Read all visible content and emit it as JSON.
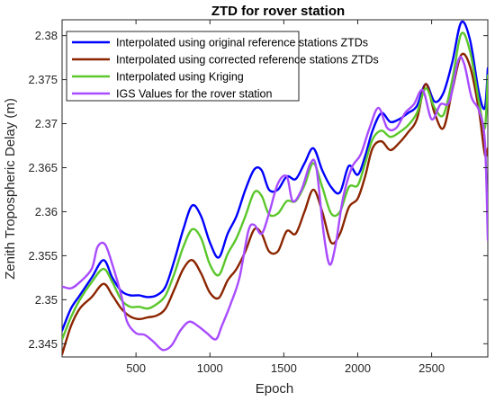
{
  "chart_data": {
    "type": "line",
    "title": "ZTD for rover station",
    "xlabel": "Epoch",
    "ylabel": "Zenith Tropospheric Delay (m)",
    "xlim": [
      0,
      2880
    ],
    "ylim": [
      2.3435,
      2.3818
    ],
    "xticks": [
      500,
      1000,
      1500,
      2000,
      2500
    ],
    "yticks": [
      2.345,
      2.35,
      2.355,
      2.36,
      2.365,
      2.37,
      2.375,
      2.38
    ],
    "ytick_labels": [
      "2.345",
      "2.35",
      "2.355",
      "2.36",
      "2.365",
      "2.37",
      "2.375",
      "2.38"
    ],
    "legend_position": "top-left",
    "grid": false,
    "series": [
      {
        "name": "Interpolated using original reference stations ZTDs",
        "color": "#0000FF",
        "points": [
          [
            0,
            2.3465
          ],
          [
            60,
            2.349
          ],
          [
            120,
            2.3505
          ],
          [
            200,
            2.3525
          ],
          [
            280,
            2.3545
          ],
          [
            340,
            2.3525
          ],
          [
            400,
            2.351
          ],
          [
            460,
            2.3505
          ],
          [
            520,
            2.3505
          ],
          [
            580,
            2.3503
          ],
          [
            640,
            2.3505
          ],
          [
            700,
            2.3515
          ],
          [
            760,
            2.3545
          ],
          [
            820,
            2.358
          ],
          [
            880,
            2.3607
          ],
          [
            940,
            2.3595
          ],
          [
            1000,
            2.3565
          ],
          [
            1060,
            2.3548
          ],
          [
            1120,
            2.3575
          ],
          [
            1180,
            2.3595
          ],
          [
            1240,
            2.3625
          ],
          [
            1300,
            2.3648
          ],
          [
            1350,
            2.3647
          ],
          [
            1400,
            2.3625
          ],
          [
            1460,
            2.3625
          ],
          [
            1520,
            2.364
          ],
          [
            1580,
            2.3637
          ],
          [
            1640,
            2.3655
          ],
          [
            1700,
            2.3672
          ],
          [
            1760,
            2.3647
          ],
          [
            1820,
            2.3628
          ],
          [
            1880,
            2.3622
          ],
          [
            1940,
            2.3652
          ],
          [
            2000,
            2.3642
          ],
          [
            2050,
            2.3663
          ],
          [
            2100,
            2.3692
          ],
          [
            2160,
            2.3712
          ],
          [
            2220,
            2.3702
          ],
          [
            2280,
            2.3705
          ],
          [
            2340,
            2.3712
          ],
          [
            2400,
            2.372
          ],
          [
            2460,
            2.3745
          ],
          [
            2520,
            2.3725
          ],
          [
            2580,
            2.3735
          ],
          [
            2640,
            2.377
          ],
          [
            2700,
            2.3815
          ],
          [
            2760,
            2.3795
          ],
          [
            2820,
            2.3735
          ],
          [
            2860,
            2.3718
          ],
          [
            2880,
            2.3763
          ]
        ]
      },
      {
        "name": "Interpolated using corrected reference stations ZTDs",
        "color": "#8B2500",
        "points": [
          [
            0,
            2.3438
          ],
          [
            60,
            2.347
          ],
          [
            120,
            2.349
          ],
          [
            200,
            2.3503
          ],
          [
            280,
            2.3518
          ],
          [
            340,
            2.3505
          ],
          [
            400,
            2.349
          ],
          [
            460,
            2.3481
          ],
          [
            520,
            2.3478
          ],
          [
            580,
            2.348
          ],
          [
            640,
            2.3482
          ],
          [
            700,
            2.349
          ],
          [
            760,
            2.3512
          ],
          [
            820,
            2.3535
          ],
          [
            880,
            2.3545
          ],
          [
            940,
            2.353
          ],
          [
            1000,
            2.3508
          ],
          [
            1060,
            2.3502
          ],
          [
            1120,
            2.3522
          ],
          [
            1180,
            2.3535
          ],
          [
            1240,
            2.3555
          ],
          [
            1300,
            2.358
          ],
          [
            1350,
            2.3575
          ],
          [
            1400,
            2.3555
          ],
          [
            1460,
            2.3555
          ],
          [
            1520,
            2.3578
          ],
          [
            1580,
            2.3575
          ],
          [
            1640,
            2.36
          ],
          [
            1700,
            2.3625
          ],
          [
            1760,
            2.36
          ],
          [
            1820,
            2.3565
          ],
          [
            1880,
            2.3575
          ],
          [
            1940,
            2.3605
          ],
          [
            2000,
            2.3615
          ],
          [
            2050,
            2.364
          ],
          [
            2100,
            2.3672
          ],
          [
            2160,
            2.368
          ],
          [
            2220,
            2.367
          ],
          [
            2280,
            2.3678
          ],
          [
            2340,
            2.369
          ],
          [
            2400,
            2.3705
          ],
          [
            2460,
            2.3745
          ],
          [
            2520,
            2.3712
          ],
          [
            2580,
            2.3695
          ],
          [
            2640,
            2.3738
          ],
          [
            2700,
            2.3778
          ],
          [
            2760,
            2.3765
          ],
          [
            2820,
            2.3715
          ],
          [
            2860,
            2.3665
          ],
          [
            2880,
            2.3672
          ]
        ]
      },
      {
        "name": "Interpolated using Kriging",
        "color": "#5BC72B",
        "points": [
          [
            0,
            2.3455
          ],
          [
            60,
            2.348
          ],
          [
            120,
            2.35
          ],
          [
            200,
            2.352
          ],
          [
            280,
            2.3535
          ],
          [
            340,
            2.352
          ],
          [
            400,
            2.35
          ],
          [
            460,
            2.3492
          ],
          [
            520,
            2.3492
          ],
          [
            580,
            2.349
          ],
          [
            640,
            2.3495
          ],
          [
            700,
            2.3505
          ],
          [
            760,
            2.353
          ],
          [
            820,
            2.356
          ],
          [
            880,
            2.358
          ],
          [
            940,
            2.357
          ],
          [
            1000,
            2.354
          ],
          [
            1060,
            2.3528
          ],
          [
            1120,
            2.3552
          ],
          [
            1180,
            2.357
          ],
          [
            1240,
            2.3595
          ],
          [
            1300,
            2.3622
          ],
          [
            1350,
            2.3618
          ],
          [
            1400,
            2.3597
          ],
          [
            1460,
            2.3598
          ],
          [
            1520,
            2.3612
          ],
          [
            1580,
            2.3612
          ],
          [
            1640,
            2.363
          ],
          [
            1700,
            2.3655
          ],
          [
            1760,
            2.3628
          ],
          [
            1820,
            2.3598
          ],
          [
            1880,
            2.36
          ],
          [
            1940,
            2.3628
          ],
          [
            2000,
            2.363
          ],
          [
            2050,
            2.3655
          ],
          [
            2100,
            2.3682
          ],
          [
            2160,
            2.3692
          ],
          [
            2220,
            2.3685
          ],
          [
            2280,
            2.369
          ],
          [
            2340,
            2.3698
          ],
          [
            2400,
            2.3712
          ],
          [
            2460,
            2.374
          ],
          [
            2520,
            2.3718
          ],
          [
            2580,
            2.371
          ],
          [
            2640,
            2.375
          ],
          [
            2700,
            2.3802
          ],
          [
            2760,
            2.3782
          ],
          [
            2820,
            2.3725
          ],
          [
            2860,
            2.3695
          ],
          [
            2880,
            2.3755
          ]
        ]
      },
      {
        "name": "IGS Values for the rover station",
        "color": "#A84BFF",
        "points": [
          [
            0,
            2.3515
          ],
          [
            60,
            2.3513
          ],
          [
            120,
            2.352
          ],
          [
            200,
            2.3535
          ],
          [
            240,
            2.356
          ],
          [
            290,
            2.3563
          ],
          [
            340,
            2.354
          ],
          [
            400,
            2.3505
          ],
          [
            440,
            2.3475
          ],
          [
            500,
            2.3462
          ],
          [
            560,
            2.346
          ],
          [
            620,
            2.3452
          ],
          [
            680,
            2.3443
          ],
          [
            740,
            2.3448
          ],
          [
            800,
            2.3465
          ],
          [
            860,
            2.3475
          ],
          [
            920,
            2.347
          ],
          [
            980,
            2.3462
          ],
          [
            1040,
            2.3455
          ],
          [
            1080,
            2.347
          ],
          [
            1140,
            2.3495
          ],
          [
            1200,
            2.3525
          ],
          [
            1260,
            2.3578
          ],
          [
            1300,
            2.3585
          ],
          [
            1350,
            2.3575
          ],
          [
            1400,
            2.3598
          ],
          [
            1460,
            2.3632
          ],
          [
            1520,
            2.364
          ],
          [
            1560,
            2.3612
          ],
          [
            1620,
            2.3625
          ],
          [
            1680,
            2.3655
          ],
          [
            1720,
            2.365
          ],
          [
            1770,
            2.3575
          ],
          [
            1810,
            2.354
          ],
          [
            1850,
            2.3562
          ],
          [
            1900,
            2.3615
          ],
          [
            1960,
            2.365
          ],
          [
            2020,
            2.3665
          ],
          [
            2080,
            2.3695
          ],
          [
            2140,
            2.3718
          ],
          [
            2200,
            2.3695
          ],
          [
            2260,
            2.3695
          ],
          [
            2320,
            2.3712
          ],
          [
            2380,
            2.3722
          ],
          [
            2440,
            2.3738
          ],
          [
            2500,
            2.3705
          ],
          [
            2560,
            2.3722
          ],
          [
            2620,
            2.3725
          ],
          [
            2680,
            2.3772
          ],
          [
            2720,
            2.3768
          ],
          [
            2770,
            2.373
          ],
          [
            2820,
            2.3715
          ],
          [
            2860,
            2.368
          ],
          [
            2880,
            2.3568
          ]
        ]
      }
    ]
  }
}
